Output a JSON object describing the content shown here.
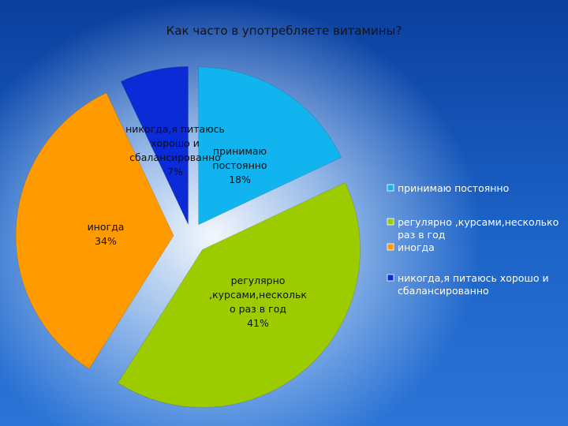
{
  "chart_data": {
    "type": "pie",
    "title": "Как часто в употребляете витамины?",
    "categories": [
      "принимаю постоянно",
      "регулярно ,курсами,несколько раз в год",
      "иногда",
      "никогда,я питаюсь хорошо и сбалансированно"
    ],
    "values": [
      18,
      41,
      34,
      7
    ],
    "unit": "%",
    "colors": [
      "#12b4f0",
      "#9ccc00",
      "#ff9a00",
      "#0a2bd6"
    ],
    "exploded": true,
    "legend": "right",
    "data_labels": [
      {
        "lines": [
          "принимаю",
          "постоянно"
        ],
        "pct": "18%"
      },
      {
        "lines": [
          "регулярно",
          ",курсами,нескольк",
          "о раз в год"
        ],
        "pct": "41%"
      },
      {
        "lines": [
          "иногда"
        ],
        "pct": "34%"
      },
      {
        "lines": [
          "никогда,я питаюсь",
          "хорошо и",
          "сбалансированно"
        ],
        "pct": "7%"
      }
    ],
    "legend_entries": [
      [
        "принимаю постоянно"
      ],
      [
        "регулярно ,курсами,несколько",
        "раз в год"
      ],
      [
        "иногда"
      ],
      [
        "никогда,я питаюсь хорошо и",
        "сбалансированно"
      ]
    ]
  }
}
